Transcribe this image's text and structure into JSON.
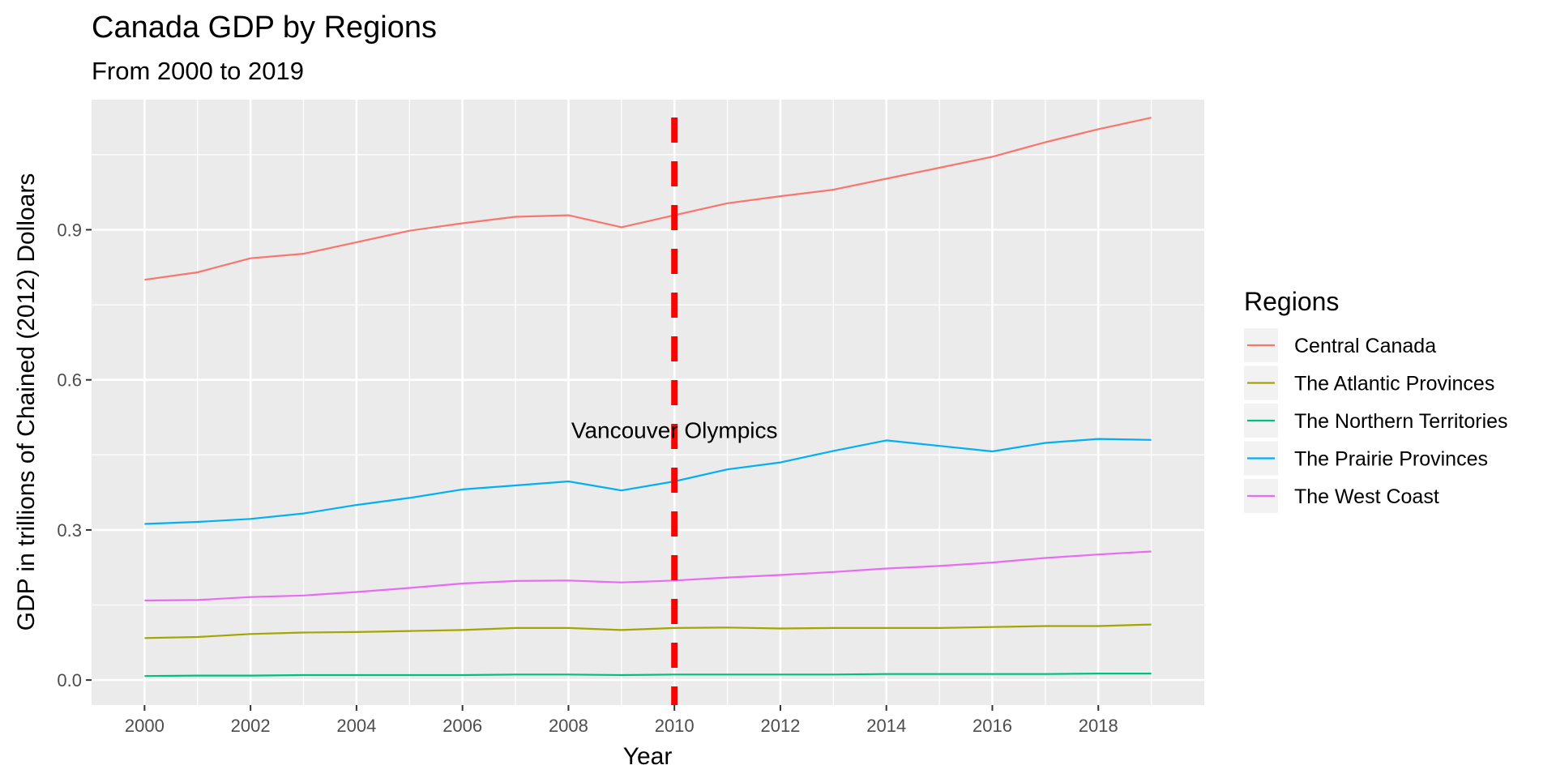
{
  "chart_data": {
    "type": "line",
    "title": "Canada GDP by Regions",
    "subtitle": "From 2000 to 2019",
    "xlabel": "Year",
    "ylabel": "GDP in trillions of Chained (2012) Dolloars",
    "xlim": [
      1999,
      2020
    ],
    "ylim": [
      -0.05,
      1.16
    ],
    "x_ticks": [
      2000,
      2002,
      2004,
      2006,
      2008,
      2010,
      2012,
      2014,
      2016,
      2018
    ],
    "y_ticks": [
      0.0,
      0.3,
      0.6,
      0.9
    ],
    "y_tick_labels": [
      "0.0",
      "0.3",
      "0.6",
      "0.9"
    ],
    "grid": true,
    "legend": {
      "title": "Regions",
      "placement": "right"
    },
    "x": [
      2000,
      2001,
      2002,
      2003,
      2004,
      2005,
      2006,
      2007,
      2008,
      2009,
      2010,
      2011,
      2012,
      2013,
      2014,
      2015,
      2016,
      2017,
      2018,
      2019
    ],
    "series": [
      {
        "name": "Central Canada",
        "color": "#F8766D",
        "values": [
          0.8,
          0.815,
          0.843,
          0.852,
          0.875,
          0.898,
          0.913,
          0.926,
          0.929,
          0.905,
          0.929,
          0.953,
          0.967,
          0.98,
          1.002,
          1.024,
          1.046,
          1.075,
          1.101,
          1.124
        ]
      },
      {
        "name": "The Atlantic Provinces",
        "color": "#A3A500",
        "values": [
          0.084,
          0.086,
          0.092,
          0.095,
          0.096,
          0.098,
          0.1,
          0.104,
          0.104,
          0.1,
          0.104,
          0.105,
          0.103,
          0.104,
          0.104,
          0.104,
          0.106,
          0.108,
          0.108,
          0.111
        ]
      },
      {
        "name": "The Northern Territories",
        "color": "#00BF7D",
        "values": [
          0.008,
          0.009,
          0.009,
          0.01,
          0.01,
          0.01,
          0.01,
          0.011,
          0.011,
          0.01,
          0.011,
          0.011,
          0.011,
          0.011,
          0.012,
          0.012,
          0.012,
          0.012,
          0.013,
          0.013
        ]
      },
      {
        "name": "The Prairie Provinces",
        "color": "#00B0F6",
        "values": [
          0.312,
          0.316,
          0.322,
          0.333,
          0.35,
          0.364,
          0.381,
          0.389,
          0.397,
          0.379,
          0.397,
          0.421,
          0.435,
          0.458,
          0.479,
          0.468,
          0.457,
          0.474,
          0.482,
          0.48
        ]
      },
      {
        "name": "The West Coast",
        "color": "#E76BF3",
        "values": [
          0.159,
          0.16,
          0.166,
          0.169,
          0.176,
          0.184,
          0.193,
          0.198,
          0.199,
          0.195,
          0.199,
          0.205,
          0.21,
          0.216,
          0.223,
          0.228,
          0.235,
          0.244,
          0.251,
          0.257
        ]
      }
    ],
    "annotations": [
      {
        "type": "vline",
        "x": 2010,
        "color": "#FF0000",
        "style": "dashed"
      },
      {
        "type": "text",
        "x": 2010,
        "y": 0.5,
        "text": "Vancouver Olympics"
      }
    ]
  }
}
